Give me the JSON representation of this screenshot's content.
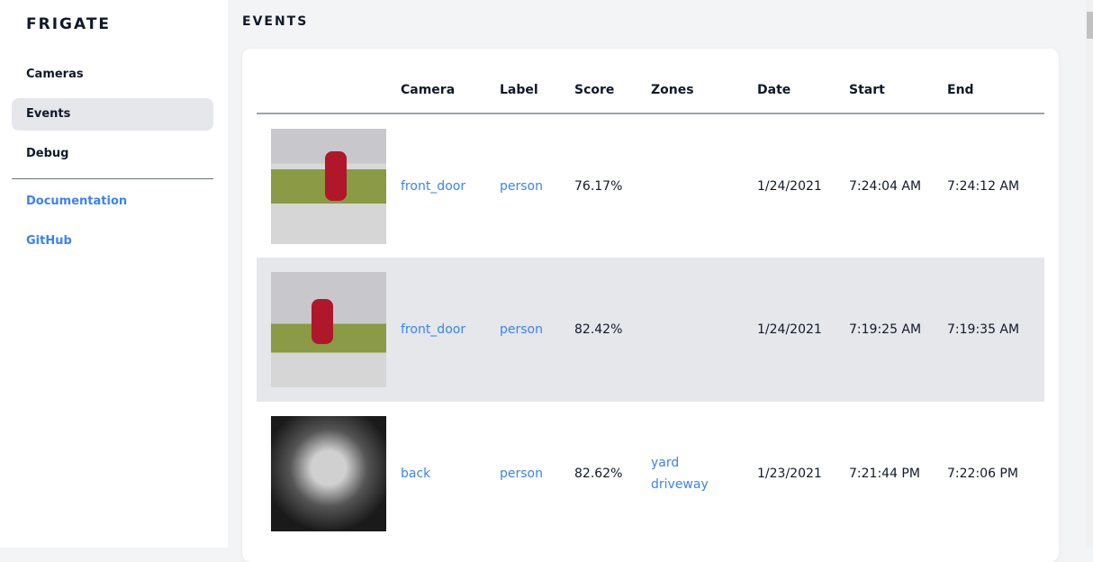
{
  "app": {
    "title": "FRIGATE"
  },
  "sidebar": {
    "items": [
      {
        "label": "Cameras"
      },
      {
        "label": "Events"
      },
      {
        "label": "Debug"
      }
    ],
    "links": [
      {
        "label": "Documentation"
      },
      {
        "label": "GitHub"
      }
    ]
  },
  "page": {
    "title": "EVENTS"
  },
  "table": {
    "headers": [
      "",
      "Camera",
      "Label",
      "Score",
      "Zones",
      "Date",
      "Start",
      "End"
    ],
    "rows": [
      {
        "camera": "front_door",
        "label": "person",
        "score": "76.17%",
        "zones": [
          "",
          ""
        ],
        "date": "1/24/2021",
        "start": "7:24:04 AM",
        "end": "7:24:12 AM"
      },
      {
        "camera": "front_door",
        "label": "person",
        "score": "82.42%",
        "zones": [
          "",
          ""
        ],
        "date": "1/24/2021",
        "start": "7:19:25 AM",
        "end": "7:19:35 AM"
      },
      {
        "camera": "back",
        "label": "person",
        "score": "82.62%",
        "zones": [
          "yard",
          "driveway"
        ],
        "date": "1/23/2021",
        "start": "7:21:44 PM",
        "end": "7:22:06 PM"
      }
    ]
  },
  "colors": {
    "accent": "#3b82f6",
    "active_bg": "#e5e7eb"
  }
}
